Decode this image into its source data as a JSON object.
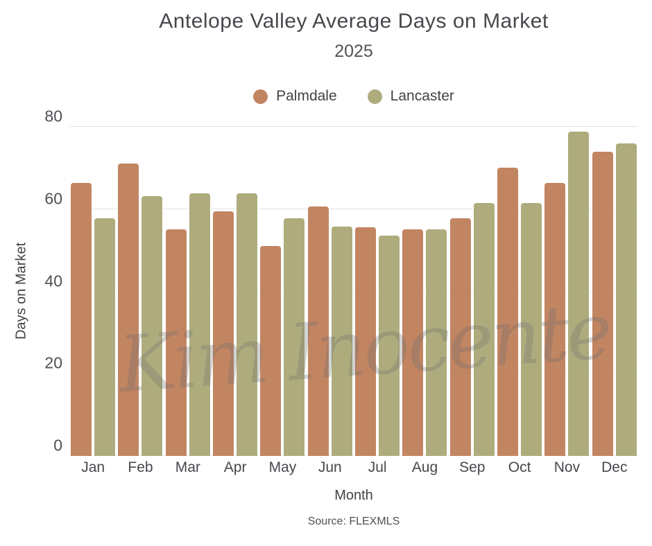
{
  "chart_data": {
    "type": "bar",
    "title": "Antelope Valley Average Days on Market",
    "subtitle": "2025",
    "xlabel": "Month",
    "ylabel": "Days on Market",
    "source_note": "Source: FLEXMLS",
    "watermark": "Kim Inocente",
    "categories": [
      "Jan",
      "Feb",
      "Mar",
      "Apr",
      "May",
      "Jun",
      "Jul",
      "Aug",
      "Sep",
      "Oct",
      "Nov",
      "Dec"
    ],
    "series": [
      {
        "name": "Palmdale",
        "color": "#c28562",
        "values": [
          66.3,
          71.0,
          55.0,
          59.4,
          51.0,
          60.7,
          55.5,
          55.1,
          57.8,
          70.1,
          66.3,
          74.0
        ]
      },
      {
        "name": "Lancaster",
        "color": "#aeac7d",
        "values": [
          57.7,
          63.1,
          63.8,
          63.9,
          57.8,
          55.8,
          53.5,
          55.0,
          61.5,
          61.5,
          78.9,
          76.0
        ]
      }
    ],
    "ylim": [
      0,
      80
    ],
    "yticks": [
      0,
      20,
      40,
      60,
      80
    ],
    "grid": "horizontal",
    "legend_position": "top-center",
    "background": "#ffffff",
    "text_color": "#45484c",
    "gridline_color": "#e4e4e6"
  }
}
